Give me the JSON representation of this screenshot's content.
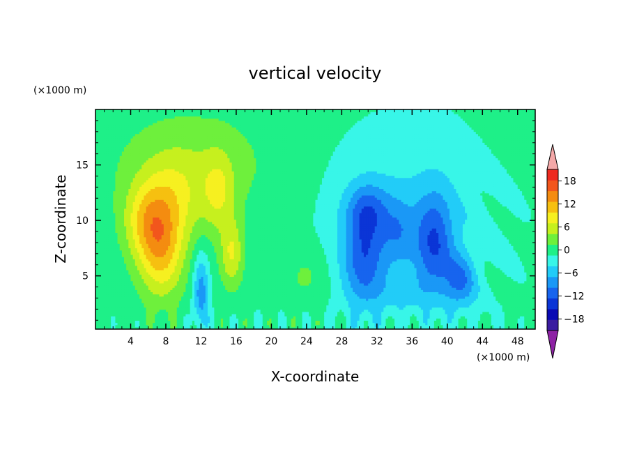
{
  "chart_data": {
    "type": "heatmap",
    "title": "vertical velocity",
    "xlabel": "X-coordinate",
    "ylabel": "Z-coordinate",
    "x_unit": "(×1000 m)",
    "y_unit": "(×1000 m)",
    "xlim": [
      0,
      50
    ],
    "ylim": [
      0.2,
      20
    ],
    "x_ticks": [
      4,
      8,
      12,
      16,
      20,
      24,
      28,
      32,
      36,
      40,
      44,
      48
    ],
    "x_tick_labels": [
      "4",
      "8",
      "12",
      "16",
      "20",
      "24",
      "28",
      "32",
      "36",
      "40",
      "44",
      "48"
    ],
    "y_ticks": [
      5,
      10,
      15
    ],
    "y_tick_labels": [
      "5",
      "10",
      "15"
    ],
    "colorbar": {
      "levels": [
        -21,
        -18,
        -15,
        -12,
        -9,
        -6,
        -3,
        0,
        3,
        6,
        9,
        12,
        15,
        18,
        21
      ],
      "labeled_levels": [
        -18,
        -12,
        -6,
        0,
        6,
        12,
        18
      ],
      "labels": [
        "18",
        "12",
        "6",
        "0",
        "-6",
        "-12",
        "-18"
      ],
      "below_color": "#8d22a4",
      "above_color": "#f4a8a8",
      "colors": [
        "#3b1ca0",
        "#0a0ab4",
        "#0b35d6",
        "#1764ee",
        "#1a98f6",
        "#22ccf8",
        "#38f6e8",
        "#1ef088",
        "#6ef03c",
        "#c6f01e",
        "#f6f020",
        "#f6c010",
        "#f48c10",
        "#f2561c",
        "#ee2a20"
      ]
    },
    "features": [
      {
        "kind": "updraft",
        "x": 8,
        "z": 7,
        "value": 15
      },
      {
        "kind": "updraft",
        "x": 5.5,
        "z": 9,
        "value": 9
      },
      {
        "kind": "updraft",
        "x": 14,
        "z": 13,
        "value": 6
      },
      {
        "kind": "updraft",
        "x": 15,
        "z": 7,
        "value": 9
      },
      {
        "kind": "downdraft",
        "x": 12,
        "z": 3,
        "value": -6
      },
      {
        "kind": "downdraft",
        "x": 30,
        "z": 7,
        "value": -12
      },
      {
        "kind": "downdraft",
        "x": 34,
        "z": 9,
        "value": -9
      },
      {
        "kind": "downdraft",
        "x": 38,
        "z": 8,
        "value": -12
      },
      {
        "kind": "downdraft",
        "x": 41,
        "z": 4,
        "value": -12
      }
    ]
  }
}
